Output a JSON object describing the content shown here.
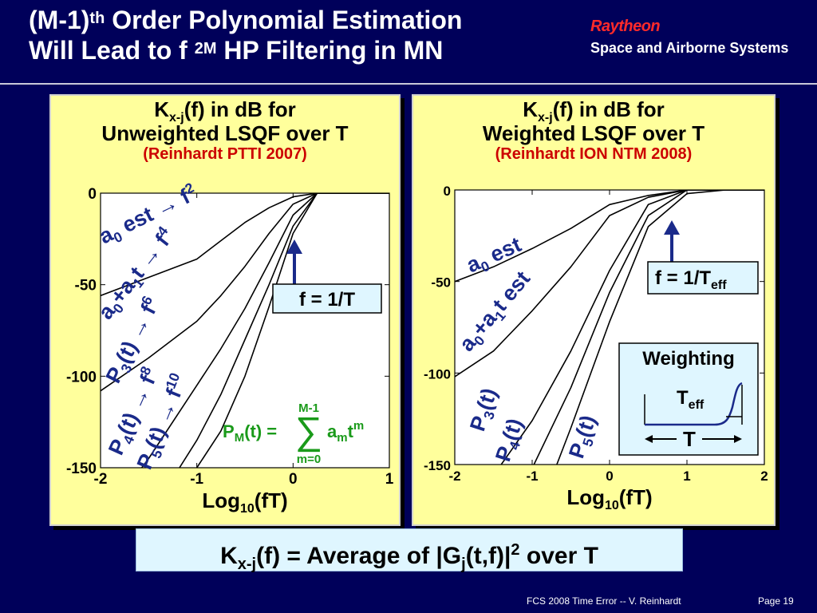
{
  "slide": {
    "title_line1_a": "(M-1)",
    "title_line1_sup": "th",
    "title_line1_b": " Order Polynomial Estimation",
    "title_line2_a": "Will Lead to f ",
    "title_line2_sup": "2M",
    "title_line2_b": " HP Filtering in MN",
    "brand_name": "Raytheon",
    "brand_division": "Space and Airborne Systems",
    "bottom_eq_a": "K",
    "bottom_eq_sub": "x-j",
    "bottom_eq_b": "(f) = Average of |G",
    "bottom_eq_sub2": "j",
    "bottom_eq_c": "(t,f)|",
    "bottom_eq_sup": "2",
    "bottom_eq_d": " over T",
    "footer": "FCS 2008 Time Error --  V. Reinhardt",
    "page": "Page 19",
    "colors": {
      "background": "#00005a",
      "panel": "#ffff9c",
      "brand": "#ff2a2a",
      "reference": "#cc0000",
      "formula": "#1a9a1a",
      "annotation": "#1a2a8a",
      "bottom_box": "#dff6ff"
    }
  },
  "panels": {
    "left": {
      "t_a": "K",
      "t_sub": "x-j",
      "t_b": "(f) in dB for",
      "t_line2": "Unweighted LSQF over T",
      "t_ref": "(Reinhardt PTTI 2007)",
      "xlabel_a": "Log",
      "xlabel_sub": "10",
      "xlabel_b": "(fT)",
      "callout": "f = 1/T",
      "formula": {
        "P": "P",
        "M": "M",
        "t1": "(t)",
        "eq": "=",
        "top": "M-1",
        "bottom": "m=0",
        "sum": "∑",
        "a": "a",
        "m": "m",
        "t2": "t",
        "sup": "m"
      },
      "curve_labels": [
        {
          "base": "a",
          "sub": "0",
          "rest": " est ",
          "arrow": "→",
          "f": " f",
          "pow": "2"
        },
        {
          "base": "a",
          "sub": "0",
          "mid": "+a",
          "sub2": "1",
          "rest": "t ",
          "arrow": "→",
          "f": " f",
          "pow": "4"
        },
        {
          "base": "P",
          "sub": "3",
          "rest": "(t) ",
          "arrow": "→",
          "f": " f",
          "pow": "6"
        },
        {
          "base": "P",
          "sub": "4",
          "rest": "(t) ",
          "arrow": "→",
          "f": " f",
          "pow": "8"
        },
        {
          "base": "P",
          "sub": "5",
          "rest": "(t) ",
          "arrow": "→",
          "f": " f",
          "pow": "10"
        }
      ]
    },
    "right": {
      "t_a": "K",
      "t_sub": "x-j",
      "t_b": "(f) in dB for",
      "t_line2": "Weighted LSQF over T",
      "t_ref": "(Reinhardt ION NTM 2008)",
      "xlabel_a": "Log",
      "xlabel_sub": "10",
      "xlabel_b": "(fT)",
      "callout_a": "f = 1/T",
      "callout_sub": "eff",
      "weighting": {
        "title": "Weighting",
        "teff_a": "T",
        "teff_sub": "eff",
        "t": "T"
      },
      "curve_labels": [
        {
          "base": "a",
          "sub": "0",
          "rest": " est"
        },
        {
          "base": "a",
          "sub": "0",
          "mid": "+a",
          "sub2": "1",
          "rest": "t est"
        },
        {
          "base": "P",
          "sub": "3",
          "rest": "(t)"
        },
        {
          "base": "P",
          "sub": "4",
          "rest": "(t)"
        },
        {
          "base": "P",
          "sub": "5",
          "rest": "(t)"
        }
      ]
    }
  },
  "chart_data": [
    {
      "type": "line",
      "title": "Kx-j(f) in dB for Unweighted LSQF over T",
      "subtitle": "(Reinhardt PTTI 2007)",
      "xlabel": "Log10(fT)",
      "ylabel": "",
      "xlim": [
        -2,
        1
      ],
      "ylim": [
        -150,
        0
      ],
      "xticks": [
        "-2",
        "-1",
        "0",
        "1"
      ],
      "yticks": [
        "0",
        "-50",
        "-100",
        "-150"
      ],
      "grid": false,
      "series": [
        {
          "name": "a0 est → f 2",
          "x": [
            -2,
            -1.5,
            -1,
            -0.75,
            -0.5,
            -0.25,
            0,
            0.25,
            0.5,
            1
          ],
          "y": [
            -56,
            -46,
            -36,
            -26,
            -16,
            -8,
            -2,
            0,
            0,
            0
          ]
        },
        {
          "name": "a0+a1t → f 4",
          "x": [
            -2,
            -1.5,
            -1,
            -0.75,
            -0.5,
            -0.25,
            0,
            0.25,
            0.5,
            1
          ],
          "y": [
            -108,
            -90,
            -70,
            -56,
            -40,
            -22,
            -6,
            0,
            0,
            0
          ]
        },
        {
          "name": "P3(t) → f 6",
          "x": [
            -2,
            -1.5,
            -1,
            -0.75,
            -0.5,
            -0.25,
            0,
            0.25,
            0.5,
            1
          ],
          "y": [
            -180,
            -145,
            -105,
            -85,
            -63,
            -38,
            -12,
            0,
            0,
            0
          ]
        },
        {
          "name": "P4(t) → f 8",
          "x": [
            -1.3,
            -1,
            -0.75,
            -0.5,
            -0.25,
            0,
            0.25,
            0.5,
            1
          ],
          "y": [
            -160,
            -135,
            -110,
            -80,
            -50,
            -18,
            0,
            0,
            0
          ]
        },
        {
          "name": "P5(t) → f 10",
          "x": [
            -1.15,
            -1,
            -0.75,
            -0.5,
            -0.25,
            0,
            0.25,
            0.5,
            1
          ],
          "y": [
            -160,
            -150,
            -130,
            -100,
            -62,
            -22,
            0,
            0,
            0
          ]
        }
      ],
      "annotations": [
        "f = 1/T"
      ]
    },
    {
      "type": "line",
      "title": "Kx-j(f) in dB for Weighted LSQF over T",
      "subtitle": "(Reinhardt ION NTM 2008)",
      "xlabel": "Log10(fT)",
      "ylabel": "",
      "xlim": [
        -2,
        2
      ],
      "ylim": [
        -150,
        0
      ],
      "xticks": [
        "-2",
        "-1",
        "0",
        "1",
        "2"
      ],
      "yticks": [
        "0",
        "-50",
        "-100",
        "-150"
      ],
      "grid": false,
      "series": [
        {
          "name": "a0 est",
          "x": [
            -2,
            -1.5,
            -1,
            -0.5,
            0,
            0.5,
            1,
            1.5,
            2
          ],
          "y": [
            -50,
            -42,
            -32,
            -21,
            -8,
            -3,
            0,
            0,
            0
          ]
        },
        {
          "name": "a0+a1t est",
          "x": [
            -2,
            -1.5,
            -1,
            -0.5,
            0,
            0.5,
            1,
            1.5,
            2
          ],
          "y": [
            -102,
            -88,
            -66,
            -42,
            -14,
            -4,
            0,
            0,
            0
          ]
        },
        {
          "name": "P3(t)",
          "x": [
            -1.4,
            -1,
            -0.5,
            0,
            0.5,
            1,
            1.5,
            2
          ],
          "y": [
            -150,
            -126,
            -88,
            -44,
            -8,
            0,
            0,
            0
          ]
        },
        {
          "name": "P4(t)",
          "x": [
            -1.0,
            -0.5,
            0,
            0.5,
            1,
            1.5,
            2
          ],
          "y": [
            -152,
            -108,
            -56,
            -14,
            0,
            0,
            0
          ]
        },
        {
          "name": "P5(t)",
          "x": [
            -0.7,
            -0.5,
            0,
            0.5,
            1,
            1.5,
            2
          ],
          "y": [
            -152,
            -130,
            -72,
            -20,
            -2,
            0,
            0
          ]
        }
      ],
      "annotations": [
        "f = 1/Teff",
        "Weighting"
      ]
    }
  ]
}
